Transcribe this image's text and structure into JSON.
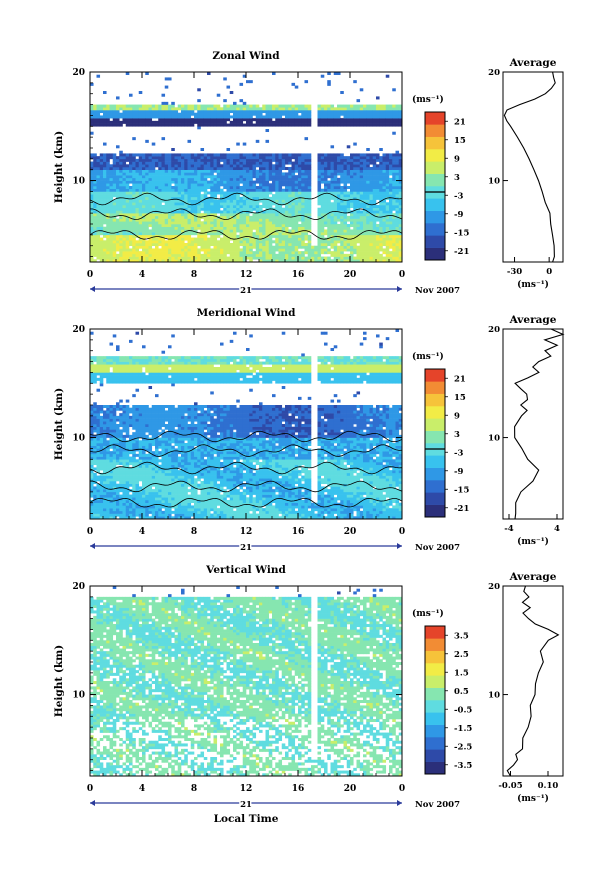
{
  "x_label": "Local Time",
  "date_label": "Nov 2007",
  "day_label": "21",
  "y_label": "Height (km)",
  "avg_title": "Average",
  "unit_label": "(ms⁻¹)",
  "chart_data": [
    {
      "type": "heatmap",
      "title": "Zonal Wind",
      "x_ticks": [
        "0",
        "4",
        "8",
        "12",
        "16",
        "20",
        "0"
      ],
      "y_ticks": [
        "20",
        "10"
      ],
      "x_range_hours": [
        0,
        24
      ],
      "ylim": [
        2.5,
        20
      ],
      "colorbar_ticks": [
        "21",
        "15",
        "9",
        "3",
        "-3",
        "-9",
        "-15",
        "-21"
      ],
      "colorbar_range": [
        -24,
        24
      ],
      "avg_xticks": [
        "-30",
        "0"
      ],
      "avg_xlim": [
        -40,
        12
      ],
      "avg_yticks": [
        "20",
        "10"
      ],
      "avg_profile": {
        "height": [
          2.5,
          3,
          4,
          5,
          6,
          7,
          8,
          9,
          10,
          11,
          12,
          13,
          14,
          15,
          15.5,
          16,
          16.5,
          17,
          17.5,
          18,
          18.5,
          19,
          19.5,
          20
        ],
        "value": [
          3,
          4,
          4,
          3,
          2,
          0,
          -3,
          -6,
          -9,
          -13,
          -17,
          -22,
          -28,
          -33,
          -37,
          -39,
          -36,
          -25,
          -12,
          -3,
          2,
          6,
          4,
          3
        ]
      },
      "color_notes": "mostly cyan/green (-6 to 6 m/s) below 9 km, blue (-15 to -21 m/s) 9-12 km, dark blue band near 15.5 km"
    },
    {
      "type": "heatmap",
      "title": "Meridional Wind",
      "x_ticks": [
        "0",
        "4",
        "8",
        "12",
        "16",
        "20",
        "0"
      ],
      "y_ticks": [
        "20",
        "10"
      ],
      "x_range_hours": [
        0,
        24
      ],
      "ylim": [
        2.5,
        20
      ],
      "colorbar_ticks": [
        "21",
        "15",
        "9",
        "3",
        "-3",
        "-9",
        "-15",
        "-21"
      ],
      "colorbar_range": [
        -24,
        24
      ],
      "avg_xticks": [
        "-4",
        "4"
      ],
      "avg_xlim": [
        -5,
        5
      ],
      "avg_yticks": [
        "20",
        "10"
      ],
      "avg_profile": {
        "height": [
          2.5,
          3,
          4,
          5,
          6,
          7,
          8,
          9,
          10,
          11,
          12,
          12.5,
          13,
          13.5,
          14,
          14.5,
          15,
          15.5,
          16,
          16.5,
          17,
          17.5,
          18,
          18.5,
          19,
          19.5,
          20
        ],
        "value": [
          -3,
          -3,
          -3,
          -2,
          0,
          1,
          -1,
          -2,
          -3,
          -3,
          -2,
          -1,
          -2,
          -1,
          -1,
          -2,
          -3,
          -1,
          1,
          0,
          1,
          3,
          2,
          4,
          2,
          5,
          3
        ]
      },
      "color_notes": "mostly cyan (-3 to -9 m/s), blue near 10-13 km, light green band near 17 km"
    },
    {
      "type": "heatmap",
      "title": "Vertical Wind",
      "x_ticks": [
        "0",
        "4",
        "8",
        "12",
        "16",
        "20",
        "0"
      ],
      "y_ticks": [
        "20",
        "10"
      ],
      "x_range_hours": [
        0,
        24
      ],
      "ylim": [
        2.5,
        20
      ],
      "colorbar_ticks": [
        "3.5",
        "2.5",
        "1.5",
        "0.5",
        "-0.5",
        "-1.5",
        "-2.5",
        "-3.5"
      ],
      "colorbar_range": [
        -4,
        4
      ],
      "avg_xticks": [
        "-0.05",
        "0.10"
      ],
      "avg_xlim": [
        -0.08,
        0.16
      ],
      "avg_yticks": [
        "20",
        "10"
      ],
      "avg_profile": {
        "height": [
          2.5,
          3,
          3.5,
          4,
          4.5,
          5,
          6,
          7,
          8,
          9,
          10,
          11,
          12,
          13,
          14,
          15,
          15.5,
          16,
          16.5,
          17,
          17.5,
          18,
          18.5,
          19,
          19.5,
          20
        ],
        "value": [
          -0.05,
          -0.06,
          -0.04,
          -0.02,
          -0.03,
          0.0,
          0.0,
          0.02,
          0.03,
          0.03,
          0.05,
          0.05,
          0.06,
          0.08,
          0.07,
          0.1,
          0.14,
          0.1,
          0.05,
          0.02,
          0.0,
          0.03,
          0.0,
          0.02,
          0.0,
          0.01
        ]
      },
      "color_notes": "mostly light cyan-green (-0.5 to 0.5 m/s) with many white gaps"
    }
  ]
}
